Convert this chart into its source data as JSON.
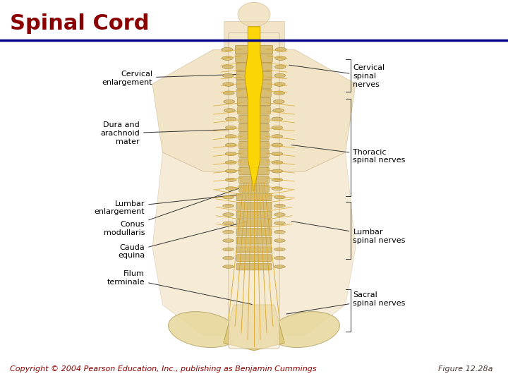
{
  "title": "Spinal Cord",
  "title_color": "#8B0000",
  "title_fontsize": 22,
  "title_fontstyle": "bold",
  "title_bar_color": "#00008B",
  "background_color": "#FFFFFF",
  "copyright_text": "Copyright © 2004 Pearson Education, Inc., publishing as Benjamin Cummings",
  "copyright_color": "#8B0000",
  "copyright_fontsize": 8,
  "figure_label": "Figure 12.28a",
  "figure_label_color": "#4B3832",
  "figure_label_fontsize": 8,
  "label_fontsize": 8,
  "label_color": "#000000",
  "fig_width": 7.2,
  "fig_height": 5.4,
  "dpi": 100
}
